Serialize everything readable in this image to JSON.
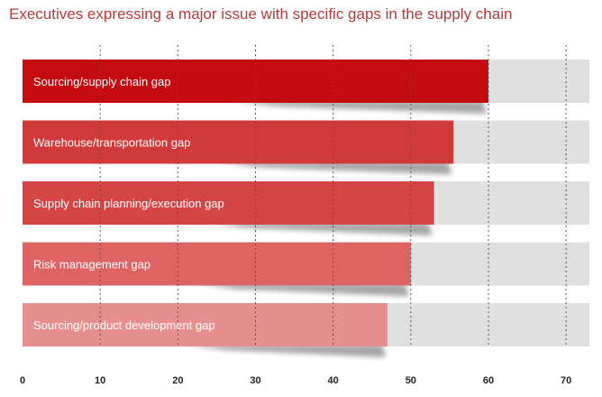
{
  "chart_data": {
    "type": "bar",
    "orientation": "horizontal",
    "title": "Executives expressing a major issue with specific gaps in the supply chain",
    "categories": [
      "Sourcing/supply chain gap",
      "Warehouse/transportation gap",
      "Supply chain planning/execution gap",
      "Risk management gap",
      "Sourcing/product development gap"
    ],
    "values": [
      60,
      55.5,
      53,
      50,
      47
    ],
    "xlim": [
      0,
      73
    ],
    "xticks": [
      "0",
      "10",
      "20",
      "30",
      "40",
      "50",
      "60",
      "70"
    ],
    "grid": true,
    "colors": [
      "#c30b10",
      "#d13a3b",
      "#d54545",
      "#de6464",
      "#e78f8f"
    ],
    "track_color": "#e0e0e0"
  }
}
